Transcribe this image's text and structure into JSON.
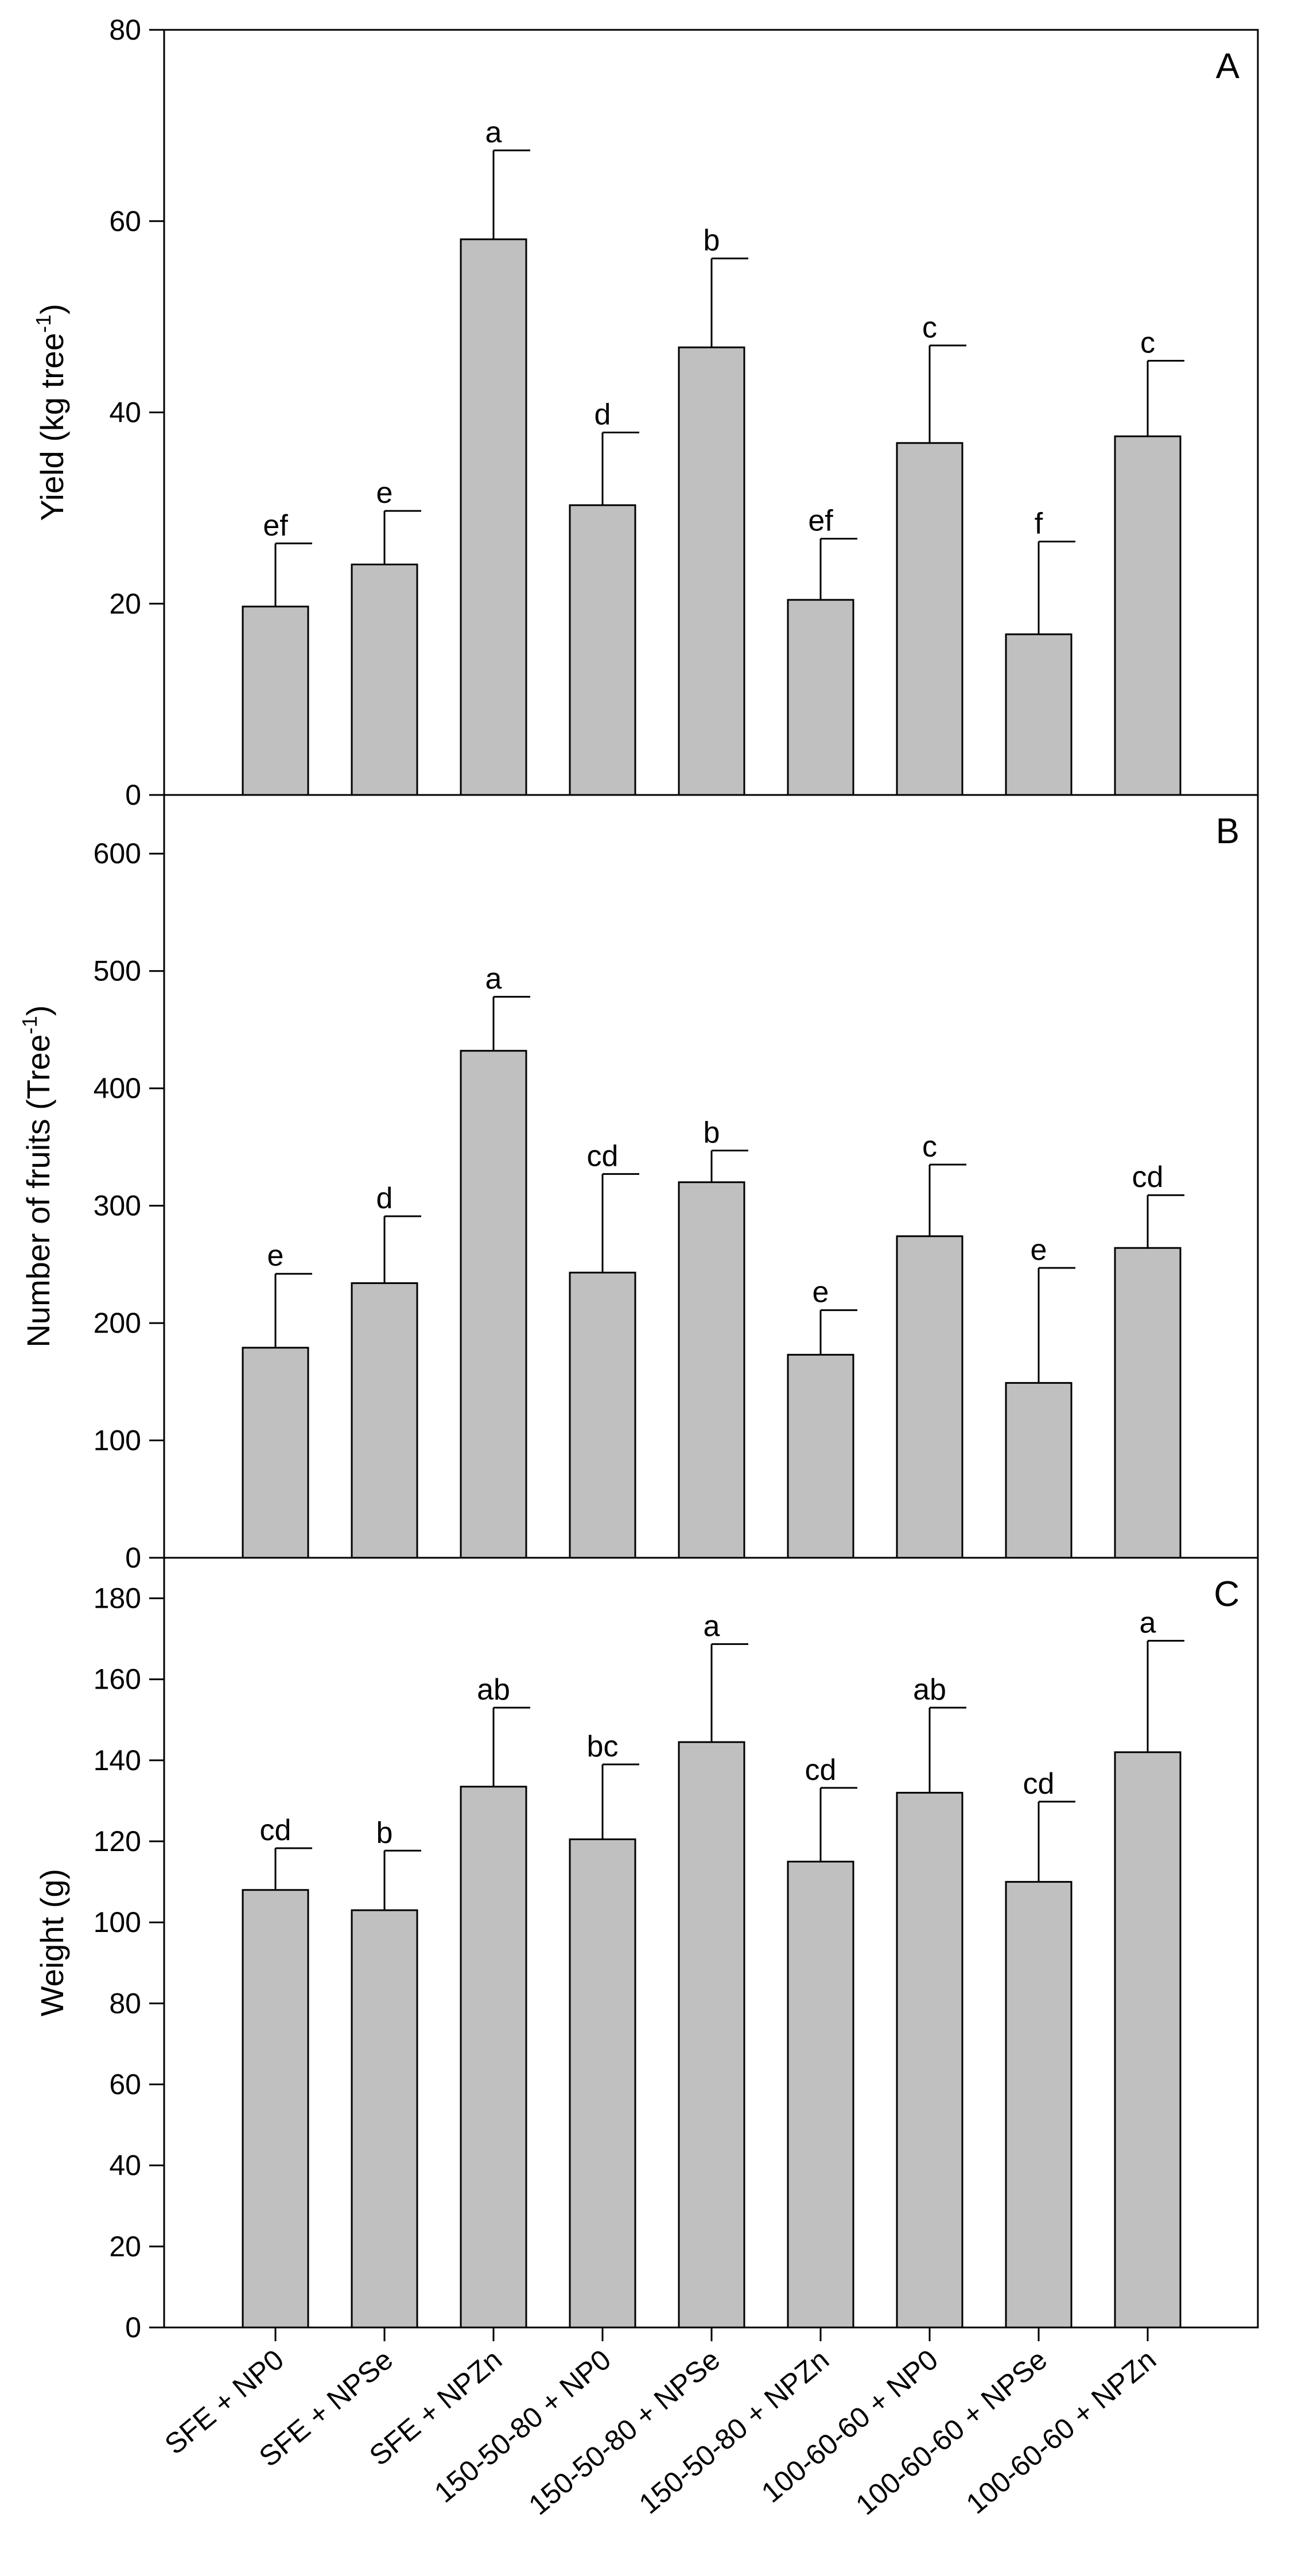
{
  "chart_data": [
    {
      "type": "bar",
      "panel_label": "A",
      "ylabel": "Yield (kg tree",
      "ylabel_sup": "-1",
      "ylabel_end": ")",
      "xlabel": "",
      "ylim": [
        0,
        80
      ],
      "yticks": [
        0,
        20,
        40,
        60,
        80
      ],
      "categories": [
        "SFE + NP0",
        "SFE + NPSe",
        "SFE + NPZn",
        "150-50-80 + NP0",
        "150-50-80 + NPSe",
        "150-50-80 + NPZn",
        "100-60-60 + NP0",
        "100-60-60 + NPSe",
        "100-60-60 + NPZn"
      ],
      "values": [
        19.7,
        24.1,
        58.1,
        30.3,
        46.8,
        20.4,
        36.8,
        16.8,
        37.5
      ],
      "errors": [
        6.6,
        5.6,
        9.3,
        7.6,
        9.3,
        6.4,
        10.2,
        9.7,
        7.9
      ],
      "letters": [
        "ef",
        "e",
        "a",
        "d",
        "b",
        "ef",
        "c",
        "f",
        "c"
      ]
    },
    {
      "type": "bar",
      "panel_label": "B",
      "ylabel": "Number of fruits (Tree",
      "ylabel_sup": "-1",
      "ylabel_end": ")",
      "xlabel": "",
      "ylim": [
        0,
        650
      ],
      "yticks": [
        0,
        100,
        200,
        300,
        400,
        500,
        600
      ],
      "categories": [
        "SFE + NP0",
        "SFE + NPSe",
        "SFE + NPZn",
        "150-50-80 + NP0",
        "150-50-80 + NPSe",
        "150-50-80 + NPZn",
        "100-60-60 + NP0",
        "100-60-60 + NPSe",
        "100-60-60 + NPZn"
      ],
      "values": [
        179,
        234,
        432,
        243,
        320,
        173,
        274,
        149,
        264
      ],
      "errors": [
        63,
        57,
        46,
        84,
        27,
        38,
        61,
        98,
        45
      ],
      "letters": [
        "e",
        "d",
        "a",
        "cd",
        "b",
        "e",
        "c",
        "e",
        "cd"
      ]
    },
    {
      "type": "bar",
      "panel_label": "C",
      "ylabel": "Weight (g)",
      "ylabel_sup": "",
      "ylabel_end": "",
      "xlabel": "",
      "ylim": [
        0,
        190
      ],
      "yticks": [
        0,
        20,
        40,
        60,
        80,
        100,
        120,
        140,
        160,
        180
      ],
      "categories": [
        "SFE + NP0",
        "SFE + NPSe",
        "SFE + NPZn",
        "150-50-80 + NP0",
        "150-50-80 + NPSe",
        "150-50-80 + NPZn",
        "100-60-60 + NP0",
        "100-60-60 + NPSe",
        "100-60-60 + NPZn"
      ],
      "values": [
        108,
        103,
        133.5,
        120.5,
        144.5,
        115,
        132,
        110,
        142
      ],
      "errors": [
        10.3,
        14.7,
        19.5,
        18.5,
        24.2,
        18.2,
        21,
        19.8,
        27.5
      ],
      "letters": [
        "cd",
        "b",
        "ab",
        "bc",
        "a",
        "cd",
        "ab",
        "cd",
        "a"
      ]
    }
  ],
  "colors": {
    "bar_fill": "#c0c0c0",
    "stroke": "#000000",
    "background": "#ffffff"
  }
}
